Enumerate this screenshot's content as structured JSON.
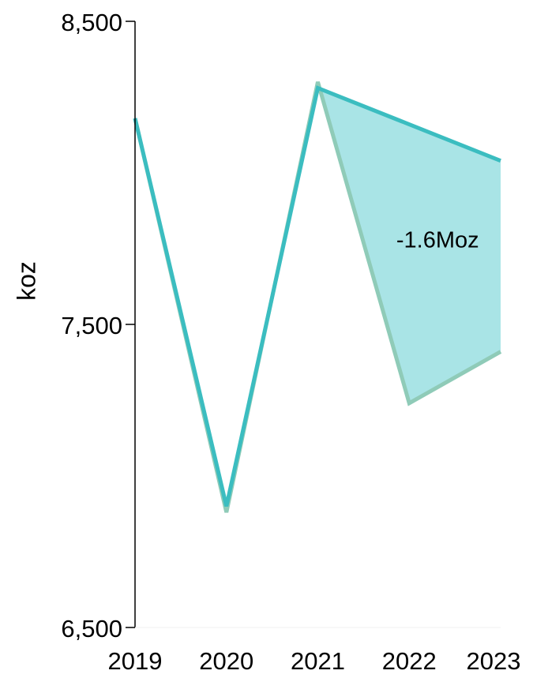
{
  "chart_data": {
    "type": "line",
    "title": "",
    "xlabel": "",
    "ylabel": "koz",
    "x": [
      "2019",
      "2020",
      "2021",
      "2022",
      "2023"
    ],
    "ylim": [
      6500,
      8500
    ],
    "y_ticks": [
      "6,500",
      "7,500",
      "8,500"
    ],
    "y_tick_values": [
      6500,
      7500,
      8500
    ],
    "grid": false,
    "legend": "none",
    "series": [
      {
        "values": [
          8180,
          6880,
          8300,
          7240,
          7410
        ],
        "color": "#8FCBB8"
      },
      {
        "values": [
          8180,
          6900,
          8280,
          8160,
          8040
        ],
        "color": "#3BBDC0"
      }
    ],
    "fill": {
      "from": "2021",
      "to": "2023",
      "color": "#A9E4E6"
    },
    "annotation": {
      "text": "-1.6Moz",
      "x": "2022",
      "y": 7780
    }
  }
}
